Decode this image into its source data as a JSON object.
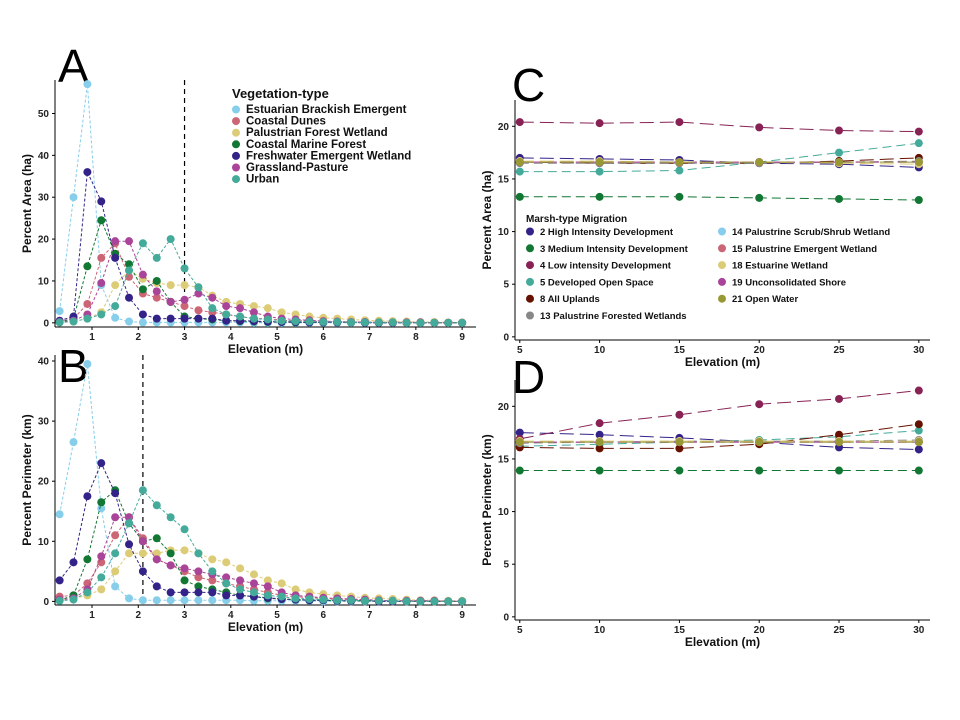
{
  "colors": {
    "estuarian": "#87ceeb",
    "dunes": "#cc6677",
    "palustrian": "#ddcc77",
    "marine": "#117733",
    "freshwater": "#332288",
    "grassland": "#aa4499",
    "urban": "#44aa99",
    "c_hid": "#332288",
    "c_mid": "#117733",
    "c_lid": "#882255",
    "c_dos": "#44aa99",
    "c_aup": "#661100",
    "c_pfw": "#888888",
    "c_pss": "#88ccee",
    "c_pew": "#cc6677",
    "c_ew": "#ddcc77",
    "c_us": "#aa4499",
    "c_ow": "#999933"
  },
  "panels": {
    "a": "A",
    "b": "B",
    "c": "C",
    "d": "D"
  },
  "chart_data": [
    {
      "panel": "A",
      "type": "line",
      "xlabel": "Elevation (m)",
      "ylabel": "Percent Area (ha)",
      "xlim": [
        0.2,
        9.3
      ],
      "ylim": [
        -1,
        58
      ],
      "xticks": [
        1,
        2,
        3,
        4,
        5,
        6,
        7,
        8,
        9
      ],
      "yticks": [
        0,
        10,
        20,
        30,
        40,
        50
      ],
      "vline": 3.0,
      "legend_title": "Vegetation-type",
      "x": [
        0.3,
        0.6,
        0.9,
        1.2,
        1.5,
        1.8,
        2.1,
        2.4,
        2.7,
        3.0,
        3.3,
        3.6,
        3.9,
        4.2,
        4.5,
        4.8,
        5.1,
        5.4,
        5.7,
        6.0,
        6.3,
        6.6,
        6.9,
        7.2,
        7.5,
        7.8,
        8.1,
        8.4,
        8.7,
        9.0
      ],
      "series": [
        {
          "name": "Estuarian Brackish Emergent",
          "color_key": "estuarian",
          "values": [
            2.8,
            30,
            57,
            9,
            1.2,
            0.3,
            0.1,
            0.1,
            0.1,
            0.1,
            0.1,
            0.1,
            0.1,
            0.1,
            0,
            0,
            0,
            0,
            0,
            0,
            0,
            0,
            0,
            0,
            0,
            0,
            0,
            0,
            0,
            0
          ]
        },
        {
          "name": "Coastal Dunes",
          "color_key": "dunes",
          "values": [
            0.3,
            1,
            4.5,
            15.5,
            19,
            11,
            7,
            6,
            5,
            4,
            3,
            2.5,
            2,
            1.5,
            1,
            1,
            0.6,
            0.5,
            0.4,
            0.3,
            0.3,
            0.2,
            0.2,
            0.1,
            0.1,
            0.1,
            0.1,
            0,
            0,
            0
          ]
        },
        {
          "name": "Palustrian Forest Wetland",
          "color_key": "palustrian",
          "values": [
            0.1,
            0.3,
            1,
            2.5,
            9,
            12.5,
            10.5,
            9.5,
            9,
            9,
            8.5,
            6.5,
            5,
            4.5,
            4,
            3.5,
            2.5,
            2,
            1.5,
            1.2,
            1,
            0.8,
            0.6,
            0.5,
            0.4,
            0.3,
            0.2,
            0.2,
            0.1,
            0.1
          ]
        },
        {
          "name": "Coastal Marine Forest",
          "color_key": "marine",
          "values": [
            0.2,
            1,
            13.5,
            24.5,
            16.5,
            14,
            8,
            10,
            5,
            1.5,
            1,
            0.8,
            0.5,
            0.4,
            0.3,
            0.2,
            0.2,
            0.1,
            0.1,
            0.1,
            0.1,
            0.1,
            0.1,
            0,
            0,
            0,
            0,
            0,
            0,
            0
          ]
        },
        {
          "name": "Freshwater Emergent Wetland",
          "color_key": "freshwater",
          "values": [
            0.5,
            1.5,
            36,
            29,
            15.5,
            6,
            2,
            1,
            1,
            1,
            1,
            1,
            0.5,
            0.5,
            0.4,
            0.3,
            0.2,
            0.2,
            0.1,
            0.1,
            0.1,
            0.1,
            0,
            0,
            0,
            0,
            0,
            0,
            0,
            0
          ]
        },
        {
          "name": "Grassland-Pasture",
          "color_key": "grassland",
          "values": [
            0.2,
            0.5,
            2,
            9.5,
            19.5,
            19.5,
            11.5,
            7.5,
            5,
            5.5,
            7,
            6,
            4,
            3.5,
            2.5,
            1.5,
            1,
            0.8,
            0.6,
            0.4,
            0.3,
            0.2,
            0.2,
            0.1,
            0.1,
            0.1,
            0.1,
            0,
            0,
            0
          ]
        },
        {
          "name": "Urban",
          "color_key": "urban",
          "values": [
            0.1,
            0.3,
            1,
            2,
            4,
            12.5,
            19,
            15.5,
            20,
            13,
            8.5,
            3.5,
            2,
            1.5,
            1,
            0.8,
            0.5,
            0.4,
            0.3,
            0.2,
            0.2,
            0.1,
            0.1,
            0.1,
            0.1,
            0,
            0,
            0,
            0,
            0
          ]
        }
      ]
    },
    {
      "panel": "B",
      "type": "line",
      "xlabel": "Elevation (m)",
      "ylabel": "Percent Perimeter (km)",
      "xlim": [
        0.2,
        9.3
      ],
      "ylim": [
        -0.6,
        41
      ],
      "xticks": [
        1,
        2,
        3,
        4,
        5,
        6,
        7,
        8,
        9
      ],
      "yticks": [
        0,
        10,
        20,
        30,
        40
      ],
      "vline": 2.1,
      "x": [
        0.3,
        0.6,
        0.9,
        1.2,
        1.5,
        1.8,
        2.1,
        2.4,
        2.7,
        3.0,
        3.3,
        3.6,
        3.9,
        4.2,
        4.5,
        4.8,
        5.1,
        5.4,
        5.7,
        6.0,
        6.3,
        6.6,
        6.9,
        7.2,
        7.5,
        7.8,
        8.1,
        8.4,
        8.7,
        9.0
      ],
      "series": [
        {
          "name": "Estuarian Brackish Emergent",
          "color_key": "estuarian",
          "values": [
            14.5,
            26.5,
            39.5,
            15.5,
            2.5,
            0.5,
            0.2,
            0.2,
            0.2,
            0.2,
            0.2,
            0.2,
            0.2,
            0.2,
            0.1,
            0.1,
            0.1,
            0.1,
            0.1,
            0,
            0,
            0,
            0,
            0,
            0,
            0,
            0,
            0,
            0,
            0
          ]
        },
        {
          "name": "Coastal Dunes",
          "color_key": "dunes",
          "values": [
            0.8,
            1,
            3,
            6.5,
            11,
            14,
            10.5,
            7,
            6,
            5,
            4,
            3.5,
            3,
            2.5,
            2,
            1.5,
            1,
            0.8,
            0.6,
            0.5,
            0.4,
            0.3,
            0.2,
            0.2,
            0.1,
            0.1,
            0.1,
            0.1,
            0,
            0
          ]
        },
        {
          "name": "Palustrian Forest Wetland",
          "color_key": "palustrian",
          "values": [
            0.2,
            0.5,
            1,
            2,
            5,
            8,
            8,
            8,
            8.5,
            8.5,
            8,
            7,
            6.5,
            5.5,
            4.5,
            3.5,
            3,
            2,
            1.5,
            1.2,
            1,
            0.8,
            0.6,
            0.5,
            0.4,
            0.3,
            0.2,
            0.2,
            0.1,
            0.1
          ]
        },
        {
          "name": "Coastal Marine Forest",
          "color_key": "marine",
          "values": [
            0.2,
            1,
            7,
            16.5,
            18.5,
            13,
            10,
            10.5,
            8,
            3.5,
            2.5,
            2,
            1.5,
            1,
            0.8,
            0.5,
            0.4,
            0.3,
            0.2,
            0.2,
            0.1,
            0.1,
            0.1,
            0.1,
            0,
            0,
            0,
            0,
            0,
            0
          ]
        },
        {
          "name": "Freshwater Emergent Wetland",
          "color_key": "freshwater",
          "values": [
            3.5,
            6.5,
            17.5,
            23,
            18,
            9.5,
            5,
            2.5,
            1.5,
            1.5,
            1.5,
            1.5,
            1,
            1,
            0.8,
            0.6,
            0.4,
            0.3,
            0.2,
            0.2,
            0.1,
            0.1,
            0.1,
            0,
            0,
            0,
            0,
            0,
            0,
            0
          ]
        },
        {
          "name": "Grassland-Pasture",
          "color_key": "grassland",
          "values": [
            0.3,
            0.5,
            2,
            7.5,
            14,
            14,
            10,
            7,
            6,
            5.5,
            5,
            4.5,
            4,
            3.5,
            3,
            2.5,
            1.5,
            1,
            0.8,
            0.6,
            0.5,
            0.4,
            0.3,
            0.2,
            0.1,
            0.1,
            0.1,
            0.1,
            0,
            0
          ]
        },
        {
          "name": "Urban",
          "color_key": "urban",
          "values": [
            0.1,
            0.3,
            1.5,
            4,
            8,
            13,
            18.5,
            16,
            14,
            12,
            8,
            5,
            3,
            2,
            1.5,
            1,
            0.8,
            0.5,
            0.4,
            0.3,
            0.2,
            0.2,
            0.1,
            0.1,
            0.1,
            0,
            0,
            0,
            0,
            0
          ]
        }
      ]
    },
    {
      "panel": "C",
      "type": "line",
      "xlabel": "Elevation (m)",
      "ylabel": "Percent Area (ha)",
      "xlim": [
        4.7,
        30.7
      ],
      "ylim": [
        -0.3,
        22.5
      ],
      "xticks": [
        5,
        10,
        15,
        20,
        25,
        30
      ],
      "yticks": [
        0,
        5,
        10,
        15,
        20
      ],
      "legend_title": "Marsh-type Migration",
      "x": [
        5,
        10,
        15,
        20,
        25,
        30
      ],
      "series": [
        {
          "name": "2 High Intensity Development",
          "color_key": "c_hid",
          "values": [
            17.0,
            16.9,
            16.8,
            16.5,
            16.4,
            16.1
          ]
        },
        {
          "name": "3 Medium Intensity Development",
          "color_key": "c_mid",
          "values": [
            13.3,
            13.3,
            13.3,
            13.2,
            13.1,
            13.0
          ]
        },
        {
          "name": "4 Low intensity Development",
          "color_key": "c_lid",
          "values": [
            20.4,
            20.3,
            20.4,
            19.9,
            19.6,
            19.5
          ]
        },
        {
          "name": "5 Developed Open Space",
          "color_key": "c_dos",
          "values": [
            15.7,
            15.7,
            15.8,
            16.6,
            17.5,
            18.4
          ]
        },
        {
          "name": "8 All Uplands",
          "color_key": "c_aup",
          "values": [
            16.6,
            16.5,
            16.5,
            16.5,
            16.7,
            17.0
          ]
        },
        {
          "name": "13 Palustrine Forested Wetlands",
          "color_key": "c_pfw",
          "values": [
            16.5,
            16.5,
            16.5,
            16.5,
            16.6,
            16.7
          ]
        },
        {
          "name": "14 Palustrine Scrub/Shrub Wetland",
          "color_key": "c_pss",
          "values": [
            16.6,
            16.6,
            16.6,
            16.6,
            16.6,
            16.6
          ]
        },
        {
          "name": "15 Palustrine Emergent Wetland",
          "color_key": "c_pew",
          "values": [
            16.6,
            16.6,
            16.6,
            16.6,
            16.6,
            16.6
          ]
        },
        {
          "name": "18 Estuarine Wetland",
          "color_key": "c_ew",
          "values": [
            16.7,
            16.7,
            16.6,
            16.6,
            16.5,
            16.4
          ]
        },
        {
          "name": "19 Unconsolidated Shore",
          "color_key": "c_us",
          "values": [
            16.6,
            16.6,
            16.6,
            16.6,
            16.6,
            16.6
          ]
        },
        {
          "name": "21 Open Water",
          "color_key": "c_ow",
          "values": [
            16.6,
            16.6,
            16.6,
            16.6,
            16.6,
            16.6
          ]
        }
      ]
    },
    {
      "panel": "D",
      "type": "line",
      "xlabel": "Elevation (m)",
      "ylabel": "Percent Perimeter (km)",
      "xlim": [
        4.7,
        30.7
      ],
      "ylim": [
        -0.3,
        22.5
      ],
      "xticks": [
        5,
        10,
        15,
        20,
        25,
        30
      ],
      "yticks": [
        0,
        5,
        10,
        15,
        20
      ],
      "x": [
        5,
        10,
        15,
        20,
        25,
        30
      ],
      "series": [
        {
          "name": "2 High Intensity Development",
          "color_key": "c_hid",
          "values": [
            17.5,
            17.3,
            17.0,
            16.6,
            16.1,
            15.9
          ]
        },
        {
          "name": "3 Medium Intensity Development",
          "color_key": "c_mid",
          "values": [
            13.9,
            13.9,
            13.9,
            13.9,
            13.9,
            13.9
          ]
        },
        {
          "name": "4 Low intensity Development",
          "color_key": "c_lid",
          "values": [
            16.9,
            18.4,
            19.2,
            20.2,
            20.7,
            21.5
          ]
        },
        {
          "name": "5 Developed Open Space",
          "color_key": "c_dos",
          "values": [
            16.2,
            16.4,
            16.6,
            16.8,
            17.1,
            17.7
          ]
        },
        {
          "name": "8 All Uplands",
          "color_key": "c_aup",
          "values": [
            16.1,
            16.0,
            16.0,
            16.4,
            17.3,
            18.3
          ]
        },
        {
          "name": "13 Palustrine Forested Wetlands",
          "color_key": "c_pfw",
          "values": [
            16.5,
            16.6,
            16.7,
            16.7,
            16.7,
            16.8
          ]
        },
        {
          "name": "14 Palustrine Scrub/Shrub Wetland",
          "color_key": "c_pss",
          "values": [
            16.6,
            16.6,
            16.6,
            16.6,
            16.6,
            16.6
          ]
        },
        {
          "name": "15 Palustrine Emergent Wetland",
          "color_key": "c_pew",
          "values": [
            16.6,
            16.6,
            16.6,
            16.6,
            16.6,
            16.6
          ]
        },
        {
          "name": "18 Estuarine Wetland",
          "color_key": "c_ew",
          "values": [
            16.7,
            16.7,
            16.7,
            16.7,
            16.7,
            16.7
          ]
        },
        {
          "name": "19 Unconsolidated Shore",
          "color_key": "c_us",
          "values": [
            16.6,
            16.6,
            16.6,
            16.6,
            16.6,
            16.6
          ]
        },
        {
          "name": "21 Open Water",
          "color_key": "c_ow",
          "values": [
            16.6,
            16.6,
            16.6,
            16.6,
            16.6,
            16.6
          ]
        }
      ]
    }
  ]
}
